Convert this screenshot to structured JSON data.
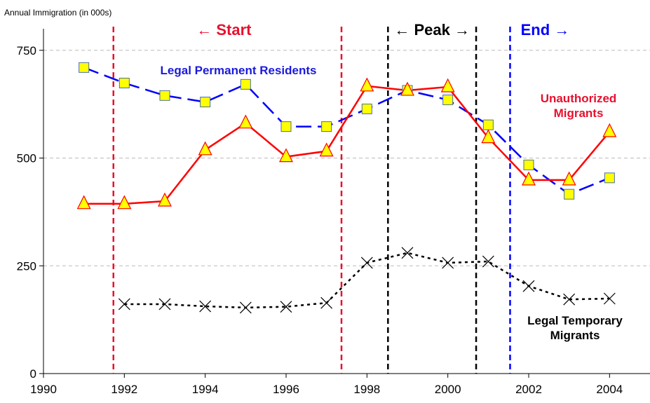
{
  "chart_data": {
    "type": "line",
    "y_axis_label": "Annual Immigration (in 000s)",
    "x": [
      1991,
      1992,
      1993,
      1994,
      1995,
      1996,
      1997,
      1998,
      1999,
      2000,
      2001,
      2002,
      2003,
      2004
    ],
    "xlim": [
      1990,
      2005
    ],
    "xticks": [
      1990,
      1992,
      1994,
      1996,
      1998,
      2000,
      2002,
      2004
    ],
    "ylim": [
      0,
      800
    ],
    "yticks": [
      0,
      250,
      500,
      750
    ],
    "grid": true,
    "series": [
      {
        "name": "Legal Permanent Residents",
        "color": "#0000ff",
        "marker": "square",
        "line": "dashed",
        "values": [
          710,
          674,
          645,
          630,
          671,
          573,
          573,
          614,
          657,
          635,
          577,
          484,
          416,
          454
        ]
      },
      {
        "name": "Unauthorized Migrants",
        "color": "#ff0000",
        "marker": "triangle",
        "line": "solid",
        "values": [
          394,
          394,
          400,
          519,
          581,
          503,
          516,
          667,
          657,
          665,
          547,
          449,
          449,
          561
        ]
      },
      {
        "name": "Legal Temporary Migrants",
        "color": "#000000",
        "marker": "x",
        "line": "dotted",
        "values": [
          null,
          161,
          161,
          156,
          153,
          155,
          164,
          257,
          280,
          257,
          260,
          203,
          172,
          174
        ]
      }
    ],
    "reference_lines": [
      {
        "x": 1991.73,
        "color": "#e8102e"
      },
      {
        "x": 1997.37,
        "color": "#e8102e"
      },
      {
        "x": 1998.52,
        "color": "#000000"
      },
      {
        "x": 2000.7,
        "color": "#000000"
      },
      {
        "x": 2001.54,
        "color": "#0000ff"
      }
    ],
    "annotations": [
      {
        "text": "← Start",
        "color": "#e8102e"
      },
      {
        "text": "← Peak →",
        "color": "#000000"
      },
      {
        "text": "End →",
        "color": "#0000ff"
      }
    ]
  }
}
